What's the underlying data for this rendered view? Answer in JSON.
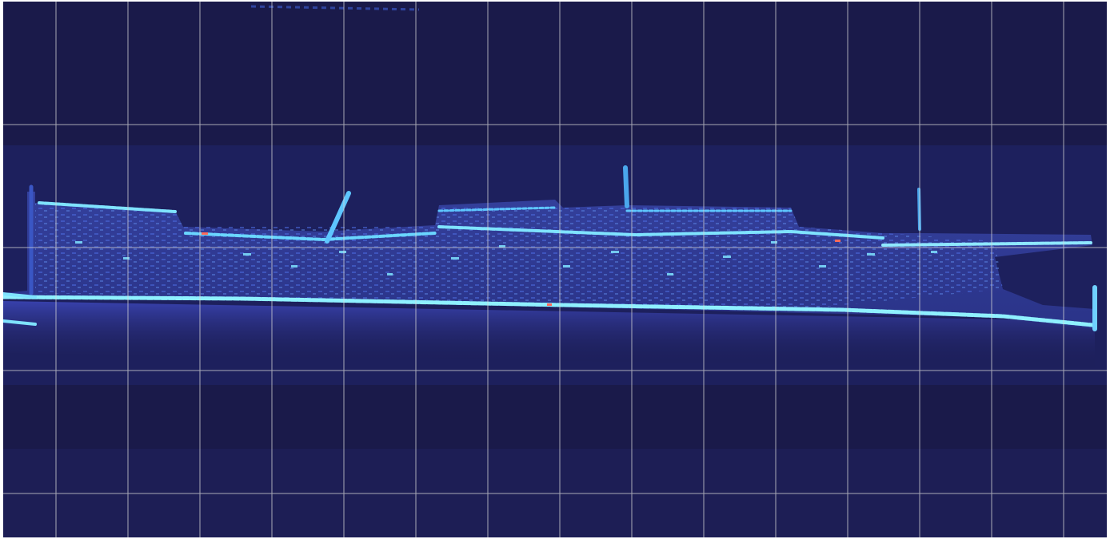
{
  "image": {
    "subject": "sonar-scan-shipwreck",
    "palette": {
      "background": "#1a1a4a",
      "hull_fill": "#2c3690",
      "hull_inner": "#3a4fb0",
      "echo_bright": "#7fe3ff",
      "echo_mid": "#3fb6ff",
      "hot_spot": "#ff6a5a",
      "shadow": "#262d7a",
      "grid_line": "#d8d8d8",
      "frame": "#ffffff"
    },
    "grid": {
      "visible": true
    }
  }
}
